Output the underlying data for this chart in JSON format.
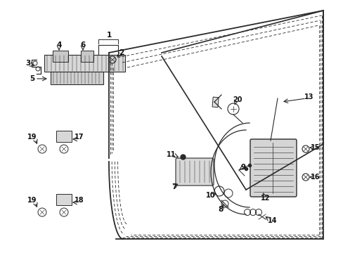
{
  "bg_color": "#ffffff",
  "fig_width": 4.89,
  "fig_height": 3.6,
  "dpi": 100,
  "line_color": "#2a2a2a",
  "text_color": "#111111",
  "font_size": 7.5
}
